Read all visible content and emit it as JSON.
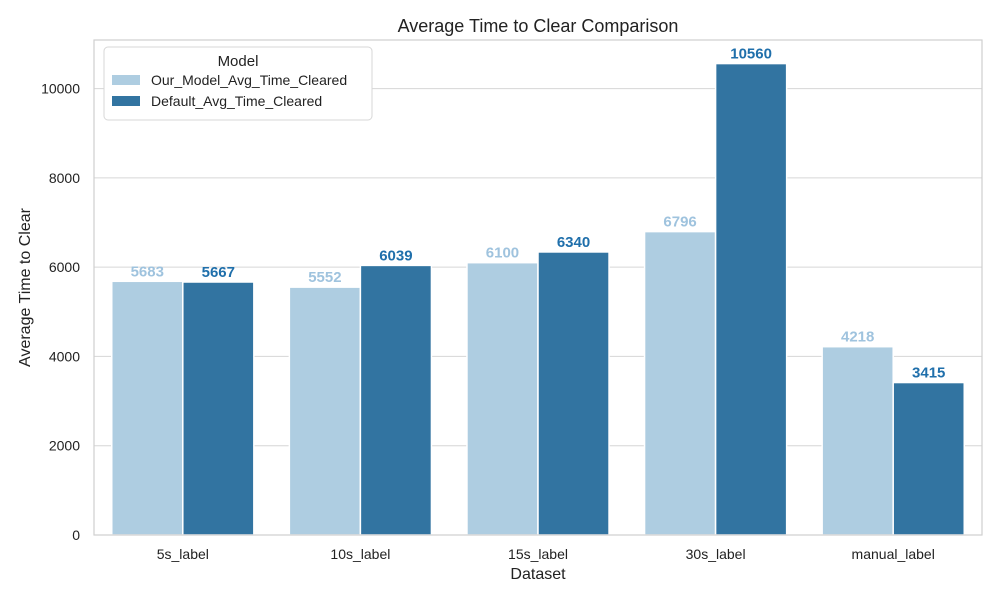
{
  "chart_data": {
    "type": "bar",
    "title": "Average Time to Clear Comparison",
    "xlabel": "Dataset",
    "ylabel": "Average Time to Clear",
    "categories": [
      "5s_label",
      "10s_label",
      "15s_label",
      "30s_label",
      "manual_label"
    ],
    "series": [
      {
        "name": "Our_Model_Avg_Time_Cleared",
        "values": [
          5683,
          5552,
          6100,
          6796,
          4218
        ],
        "color": "#aecde1"
      },
      {
        "name": "Default_Avg_Time_Cleared",
        "values": [
          5667,
          6039,
          6340,
          10560,
          3415
        ],
        "color": "#3274a1"
      }
    ],
    "ylim": [
      0,
      11088
    ],
    "yticks": [
      0,
      2000,
      4000,
      6000,
      8000,
      10000
    ],
    "grid": true,
    "legend": {
      "title": "Model",
      "placement": "top-left"
    },
    "data_labels": {
      "series_colors": [
        "#9fc3de",
        "#1f6fab"
      ]
    }
  }
}
